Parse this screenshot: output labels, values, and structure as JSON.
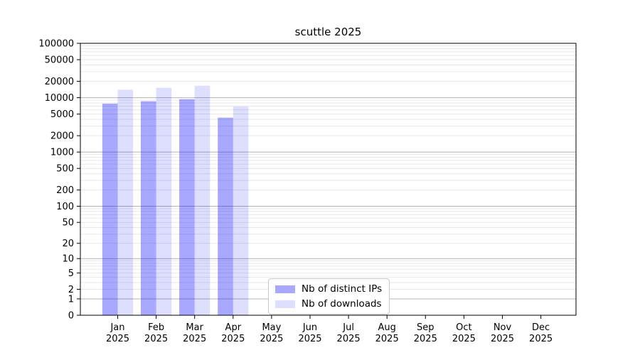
{
  "chart_data": {
    "type": "bar",
    "title": "scuttle 2025",
    "categories": [
      "Jan",
      "Feb",
      "Mar",
      "Apr",
      "May",
      "Jun",
      "Jul",
      "Aug",
      "Sep",
      "Oct",
      "Nov",
      "Dec"
    ],
    "year_label": "2025",
    "series": [
      {
        "name": "Nb of distinct IPs",
        "color": "rgba(0,0,255,0.34)",
        "values": [
          7800,
          8600,
          9400,
          4300,
          0,
          0,
          0,
          0,
          0,
          0,
          0,
          0
        ]
      },
      {
        "name": "Nb of downloads",
        "color": "rgba(0,0,255,0.13)",
        "values": [
          14000,
          15200,
          16600,
          6900,
          0,
          0,
          0,
          0,
          0,
          0,
          0,
          0
        ]
      }
    ],
    "yscale": "log1p",
    "ylim": [
      0,
      100000
    ],
    "yticks": [
      0,
      1,
      2,
      5,
      10,
      20,
      50,
      100,
      200,
      500,
      1000,
      2000,
      5000,
      10000,
      20000,
      50000,
      100000
    ],
    "grid": {
      "minor_color": "#e9e9e9",
      "major_color": "#b4b4b4",
      "on": true
    },
    "axis_color": "#000000",
    "legend_position": "lower center"
  }
}
